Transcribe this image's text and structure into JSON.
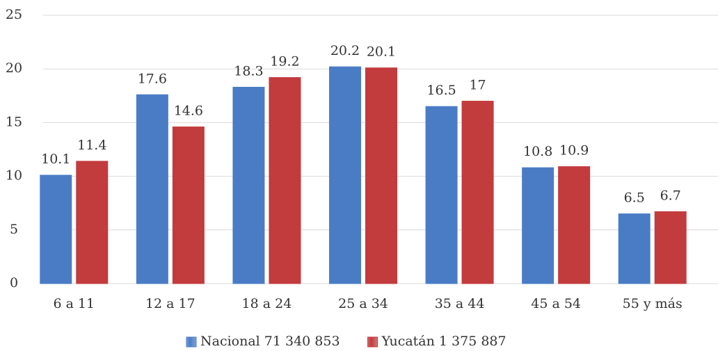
{
  "chart_data": {
    "type": "bar",
    "categories": [
      "6 a 11",
      "12 a 17",
      "18 a 24",
      "25 a 34",
      "35 a 44",
      "45 a 54",
      "55 y más"
    ],
    "series": [
      {
        "name": "Nacional 71 340 853",
        "color": "#4a7cc6",
        "values": [
          10.1,
          17.6,
          18.3,
          20.2,
          16.5,
          10.8,
          6.5
        ]
      },
      {
        "name": "Yucatán 1 375 887",
        "color": "#c23b3d",
        "values": [
          11.4,
          14.6,
          19.2,
          20.1,
          17,
          10.9,
          6.7
        ]
      }
    ],
    "ylim": [
      0,
      25
    ],
    "yticks": [
      0,
      5,
      10,
      15,
      20,
      25
    ],
    "grid": true,
    "legend": "bottom"
  }
}
